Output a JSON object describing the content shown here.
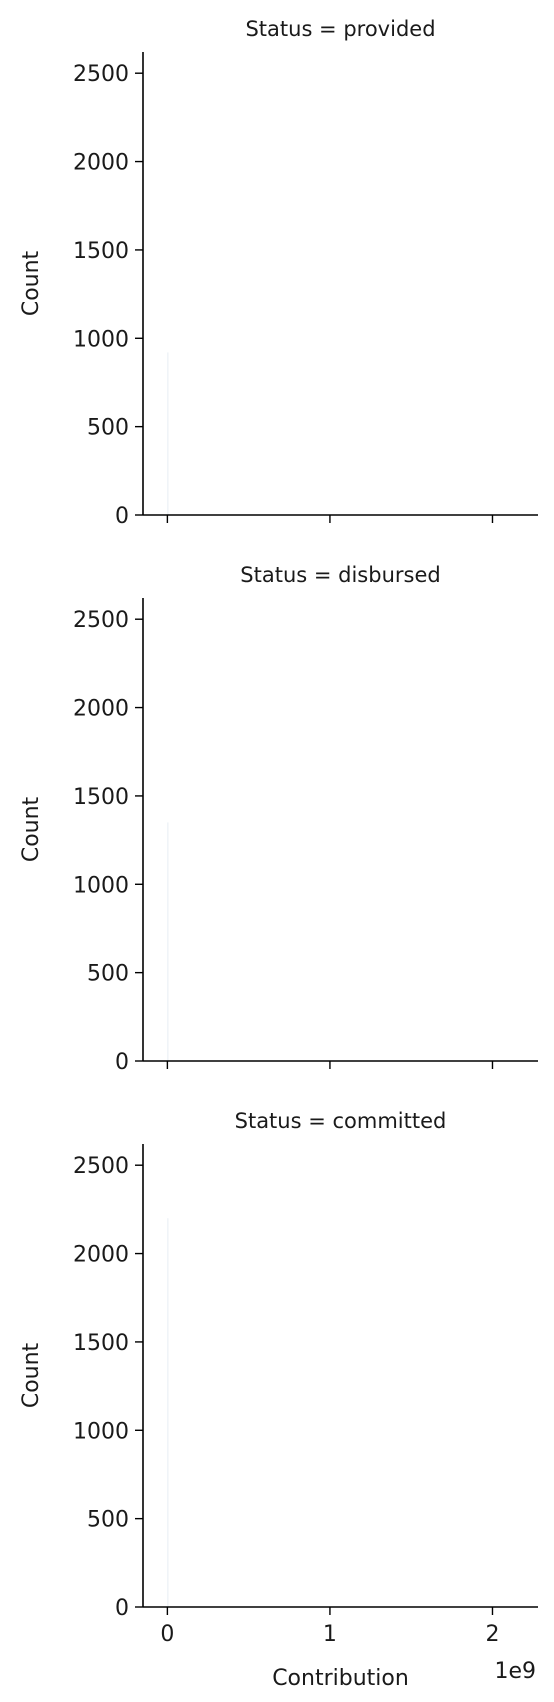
{
  "chart_data": {
    "type": "bar",
    "layout": "facet-grid",
    "facet_variable": "Status",
    "xlabel": "Contribution",
    "ylabel": "Count",
    "x_offset_label": "1e9",
    "ylim": [
      0,
      2620
    ],
    "xlim": [
      -0.15,
      2.28
    ],
    "x_ticks": [
      0,
      1,
      2
    ],
    "x_tick_labels": [
      "0",
      "1",
      "2"
    ],
    "y_ticks": [
      0,
      500,
      1000,
      1500,
      2000,
      2500
    ],
    "y_tick_labels": [
      "0",
      "500",
      "1000",
      "1500",
      "2000",
      "2500"
    ],
    "grid": false,
    "panels": [
      {
        "title": "Status = provided",
        "bins": [
          {
            "x_start": 0,
            "x_end": 0.005,
            "count": 920
          }
        ]
      },
      {
        "title": "Status = disbursed",
        "bins": [
          {
            "x_start": 0,
            "x_end": 0.005,
            "count": 1350
          }
        ]
      },
      {
        "title": "Status = committed",
        "bins": [
          {
            "x_start": 0,
            "x_end": 0.005,
            "count": 2200
          }
        ]
      }
    ],
    "bar_color": "#b7cde0"
  }
}
